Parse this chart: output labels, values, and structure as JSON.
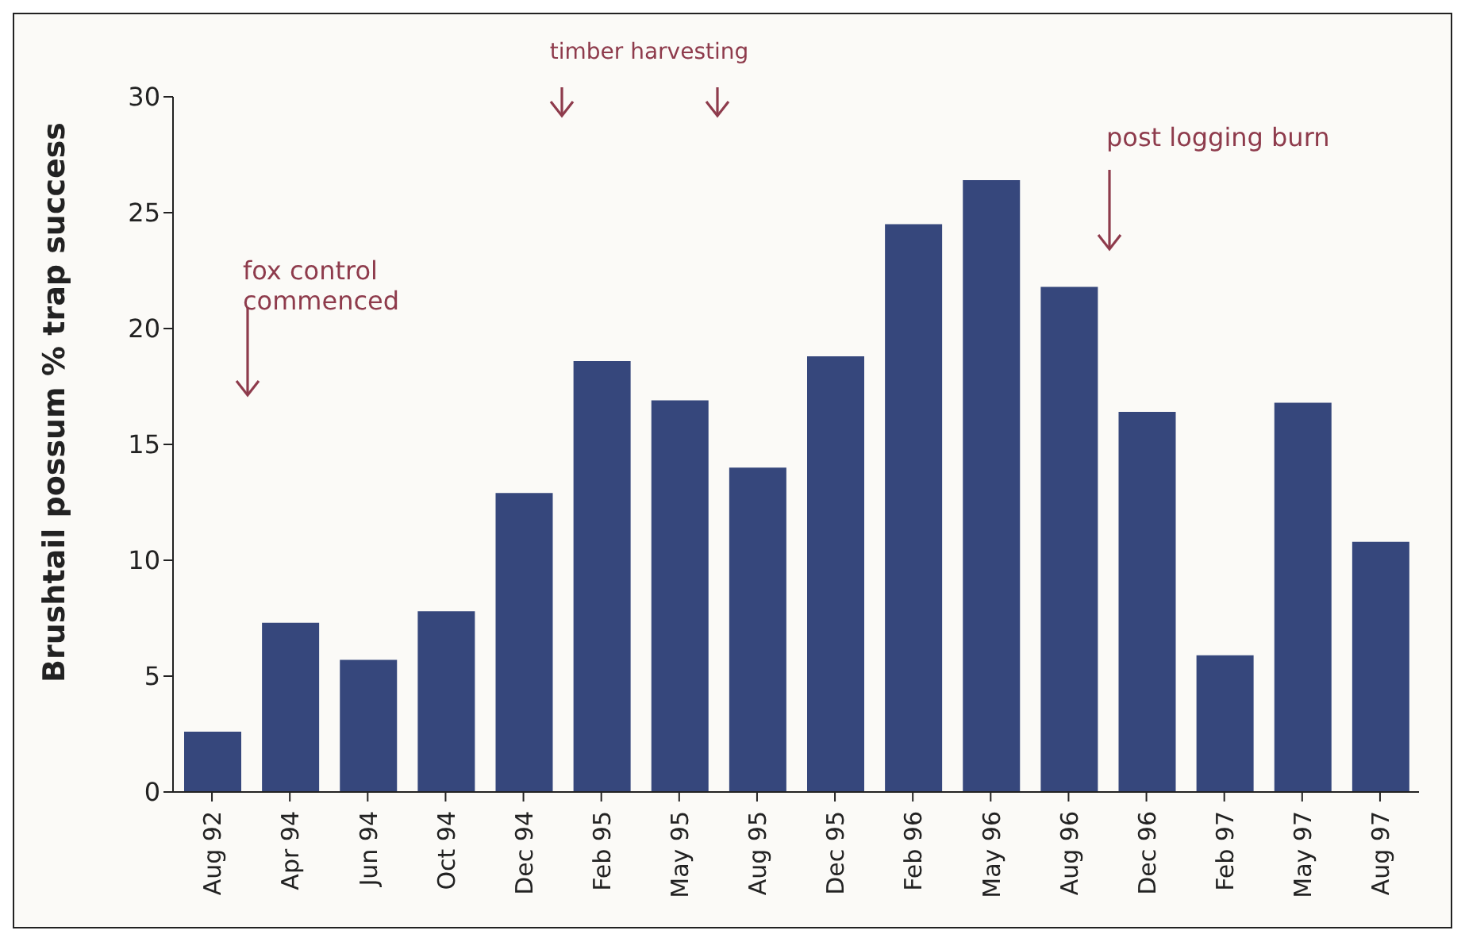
{
  "chart_data": {
    "type": "bar",
    "ylabel": "Brushtail possum % trap success",
    "categories": [
      "Aug 92",
      "Apr 94",
      "Jun 94",
      "Oct 94",
      "Dec 94",
      "Feb 95",
      "May 95",
      "Aug 95",
      "Dec 95",
      "Feb 96",
      "May 96",
      "Aug 96",
      "Dec 96",
      "Feb 97",
      "May 97",
      "Aug 97"
    ],
    "values": [
      2.6,
      7.3,
      5.7,
      7.8,
      12.9,
      18.6,
      16.9,
      14.0,
      18.8,
      24.5,
      26.4,
      21.8,
      16.4,
      5.9,
      16.8,
      10.8
    ],
    "color": "#36477c",
    "ylim": [
      0,
      30
    ],
    "yticks": [
      0,
      5,
      10,
      15,
      20,
      25,
      30
    ],
    "annotations": [
      "fox control commenced",
      "timber harvesting",
      "post logging burn"
    ]
  }
}
